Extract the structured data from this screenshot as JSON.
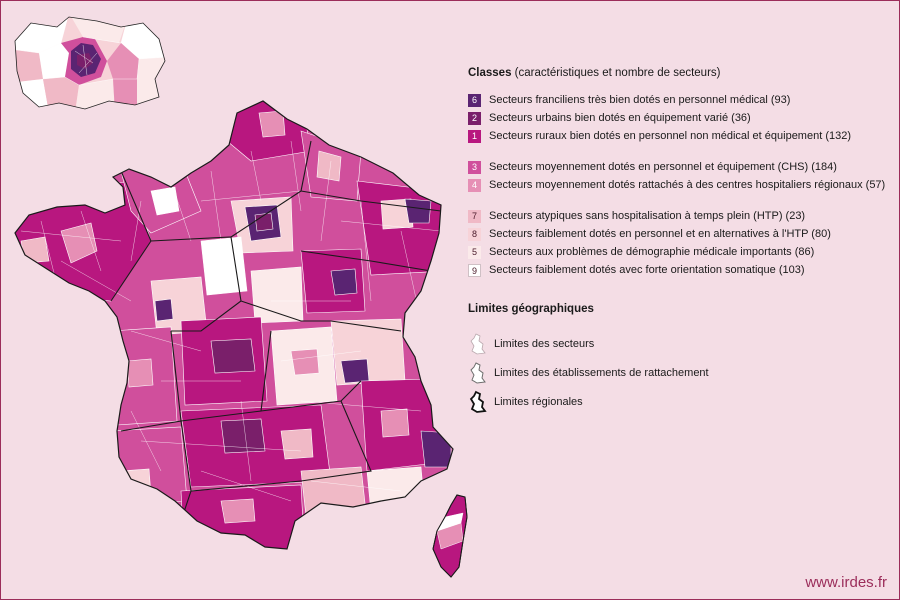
{
  "legend": {
    "classes_title_bold": "Classes",
    "classes_title_rest": " (caractéristiques et nombre de secteurs)",
    "classes": [
      {
        "num": "6",
        "label": "Secteurs franciliens très bien dotés en personnel médical (93)",
        "color": "#5a2472",
        "text_color": "#ffffff"
      },
      {
        "num": "2",
        "label": "Secteurs urbains bien dotés en équipement varié (36)",
        "color": "#7a1f6a",
        "text_color": "#ffffff"
      },
      {
        "num": "1",
        "label": "Secteurs ruraux bien dotés en personnel non médical et équipement (132)",
        "color": "#b8177f",
        "text_color": "#ffffff"
      },
      {
        "num": "3",
        "label": "Secteurs moyennement dotés en personnel et équipement (CHS) (184)",
        "color": "#d04f9c",
        "text_color": "#ffffff"
      },
      {
        "num": "4",
        "label": "Secteurs moyennement dotés rattachés à des centres hospitaliers régionaux (57)",
        "color": "#e68fb5",
        "text_color": "#ffffff"
      },
      {
        "num": "7",
        "label": "Secteurs atypiques sans hospitalisation à temps plein (HTP) (23)",
        "color": "#f0b9c6",
        "text_color": "#4a1a2a"
      },
      {
        "num": "8",
        "label": "Secteurs faiblement dotés en personnel et en alternatives à l'HTP (80)",
        "color": "#f7d3d8",
        "text_color": "#4a1a2a"
      },
      {
        "num": "5",
        "label": "Secteurs aux problèmes de démographie médicale importants (86)",
        "color": "#fbeaea",
        "text_color": "#4a1a2a"
      },
      {
        "num": "9",
        "label": "Secteurs faiblement dotés avec forte orientation somatique (103)",
        "color": "#ffffff",
        "text_color": "#4a1a2a"
      }
    ],
    "limits_title": "Limites géographiques",
    "limits": [
      {
        "label": "Limites des secteurs",
        "icon": "sector-boundary-icon"
      },
      {
        "label": "Limites des établissements de rattachement",
        "icon": "establishment-boundary-icon"
      },
      {
        "label": "Limites régionales",
        "icon": "regional-boundary-icon"
      }
    ]
  },
  "credit": "www.irdes.fr",
  "colors": {
    "background": "#f4dde5",
    "accent": "#9b2d5a"
  }
}
